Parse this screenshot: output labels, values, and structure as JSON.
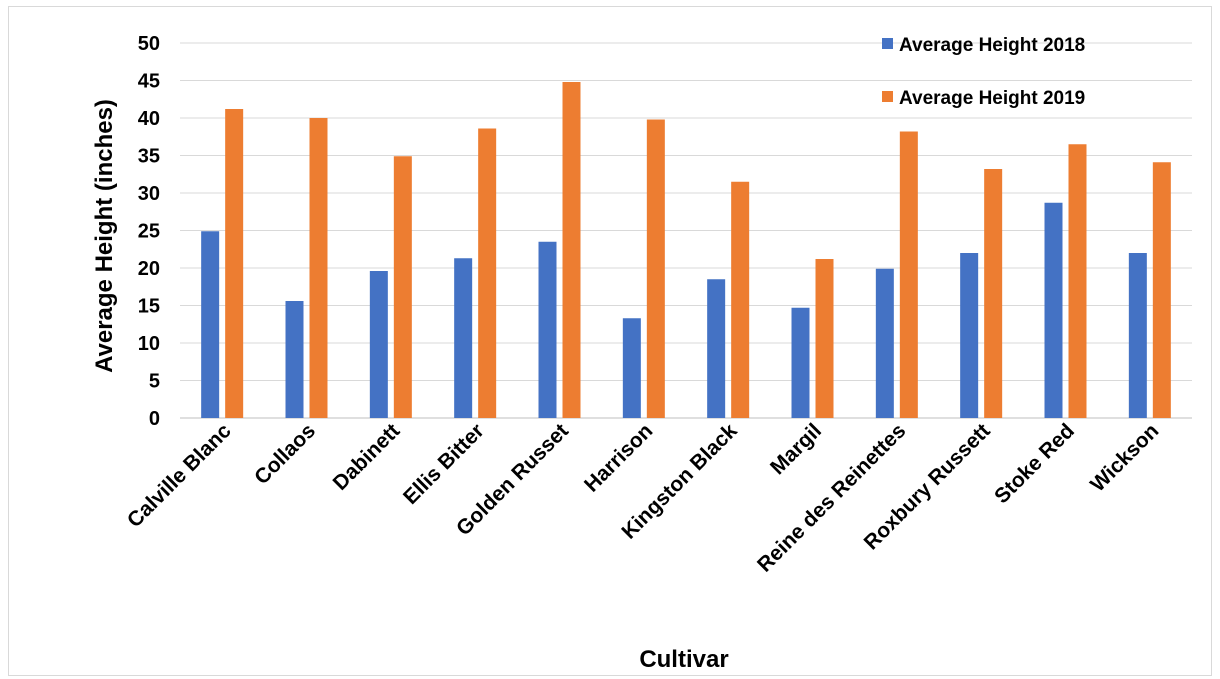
{
  "chart_data": {
    "type": "bar",
    "title": "",
    "xlabel": "Cultivar",
    "ylabel": "Average Height (inches)",
    "ylim": [
      0,
      50
    ],
    "yticks": [
      0,
      5,
      10,
      15,
      20,
      25,
      30,
      35,
      40,
      45,
      50
    ],
    "grid": true,
    "legend_position": "top-right",
    "categories": [
      "Calville Blanc",
      "Collaos",
      "Dabinett",
      "Ellis Bitter",
      "Golden Russet",
      "Harrison",
      "Kingston Black",
      "Margil",
      "Reine des Reinettes",
      "Roxbury Russett",
      "Stoke Red",
      "Wickson"
    ],
    "series": [
      {
        "name": "Average Height 2018",
        "color": "#4472c4",
        "values": [
          24.9,
          15.6,
          19.6,
          21.3,
          23.5,
          13.3,
          18.5,
          14.7,
          19.9,
          22.0,
          28.7,
          22.0
        ]
      },
      {
        "name": "Average Height 2019",
        "color": "#ed7d31",
        "values": [
          41.2,
          40.0,
          34.9,
          38.6,
          44.8,
          39.8,
          31.5,
          21.2,
          38.2,
          33.2,
          36.5,
          34.1
        ]
      }
    ]
  }
}
